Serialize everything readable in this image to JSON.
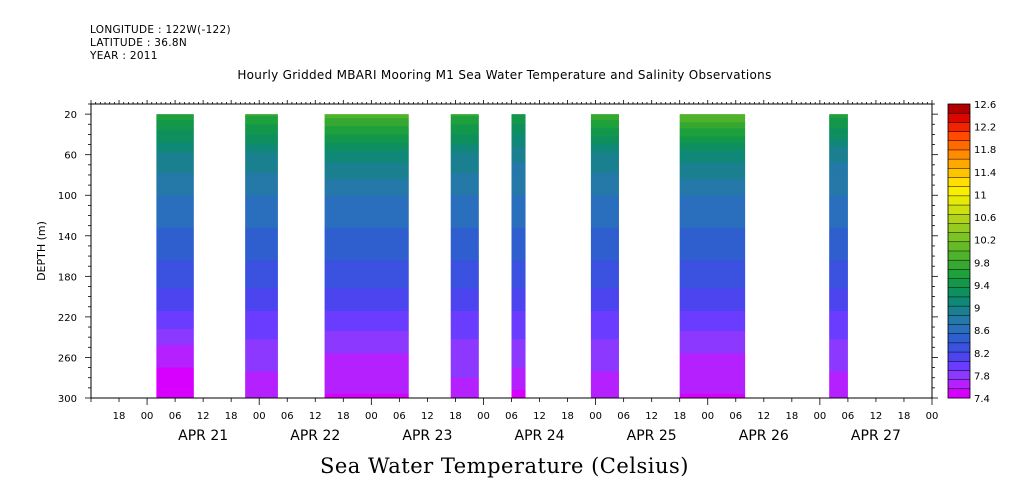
{
  "header": {
    "longitude": "LONGITUDE : 122W(-122)",
    "latitude": "LATITUDE : 36.8N",
    "year": "YEAR : 2011"
  },
  "chart_data": {
    "type": "heatmap",
    "title": "Hourly Gridded MBARI Mooring M1 Sea Water Temperature and Salinity Observations",
    "xlabel": "Sea Water Temperature (Celsius)",
    "ylabel": "DEPTH (m)",
    "ylim": [
      300,
      10
    ],
    "yticks": [
      20,
      60,
      100,
      140,
      180,
      220,
      260,
      300
    ],
    "xlim_hours_from_apr21_00": [
      -12,
      168
    ],
    "hour_tick_labels": [
      "00",
      "06",
      "12",
      "18"
    ],
    "day_labels": [
      "APR 21",
      "APR 22",
      "APR 23",
      "APR 24",
      "APR 25",
      "APR 26",
      "APR 27"
    ],
    "depth_levels": [
      20,
      60,
      100,
      140,
      180,
      220,
      260,
      300
    ],
    "data_blocks": [
      {
        "start": "APR 21 02:00",
        "end": "APR 21 10:00",
        "profile": [
          9.6,
          9.0,
          8.7,
          8.5,
          8.3,
          8.0,
          7.6,
          7.45
        ]
      },
      {
        "start": "APR 21 21:00",
        "end": "APR 22 04:00",
        "profile": [
          9.7,
          9.0,
          8.7,
          8.5,
          8.3,
          8.0,
          7.8,
          7.6
        ]
      },
      {
        "start": "APR 22 14:00",
        "end": "APR 23 08:00",
        "profile": [
          9.9,
          9.1,
          8.7,
          8.5,
          8.3,
          8.0,
          7.7,
          7.55
        ]
      },
      {
        "start": "APR 23 17:00",
        "end": "APR 23 23:00",
        "profile": [
          9.7,
          9.0,
          8.7,
          8.5,
          8.3,
          8.0,
          7.8,
          7.65
        ]
      },
      {
        "start": "APR 24 06:00",
        "end": "APR 24 09:00",
        "profile": [
          9.5,
          8.9,
          8.7,
          8.5,
          8.3,
          8.0,
          7.8,
          7.5
        ]
      },
      {
        "start": "APR 24 23:00",
        "end": "APR 25 05:00",
        "profile": [
          9.8,
          9.0,
          8.7,
          8.5,
          8.3,
          8.0,
          7.8,
          7.6
        ]
      },
      {
        "start": "APR 25 18:00",
        "end": "APR 26 08:00",
        "profile": [
          10.0,
          9.1,
          8.7,
          8.5,
          8.3,
          8.0,
          7.7,
          7.55
        ]
      },
      {
        "start": "APR 27 02:00",
        "end": "APR 27 06:00",
        "profile": [
          9.6,
          8.9,
          8.7,
          8.5,
          8.3,
          8.0,
          7.8,
          7.6
        ]
      }
    ],
    "colorbar": {
      "labels": [
        "12.6",
        "12.2",
        "11.8",
        "11.4",
        "11",
        "10.6",
        "10.2",
        "9.8",
        "9.4",
        "9",
        "8.6",
        "8.2",
        "7.8",
        "7.4"
      ],
      "min": 7.4,
      "max": 12.6,
      "step": 0.2,
      "colors_low_to_high": [
        "#d700ff",
        "#b520ff",
        "#8c38ff",
        "#6a3cff",
        "#4b44ef",
        "#3b51e0",
        "#2f5fcf",
        "#2a6fbe",
        "#2479a8",
        "#1a8090",
        "#108878",
        "#0e8f5e",
        "#13974a",
        "#1ea03c",
        "#34a830",
        "#4eb22a",
        "#66ba28",
        "#7cc424",
        "#96cc20",
        "#b1d41a",
        "#cde012",
        "#e6ea08",
        "#f8ef00",
        "#ffde00",
        "#ffc400",
        "#ffa800",
        "#ff8c00",
        "#ff6a00",
        "#ff4a00",
        "#f02400",
        "#da0600",
        "#b00000"
      ]
    }
  }
}
